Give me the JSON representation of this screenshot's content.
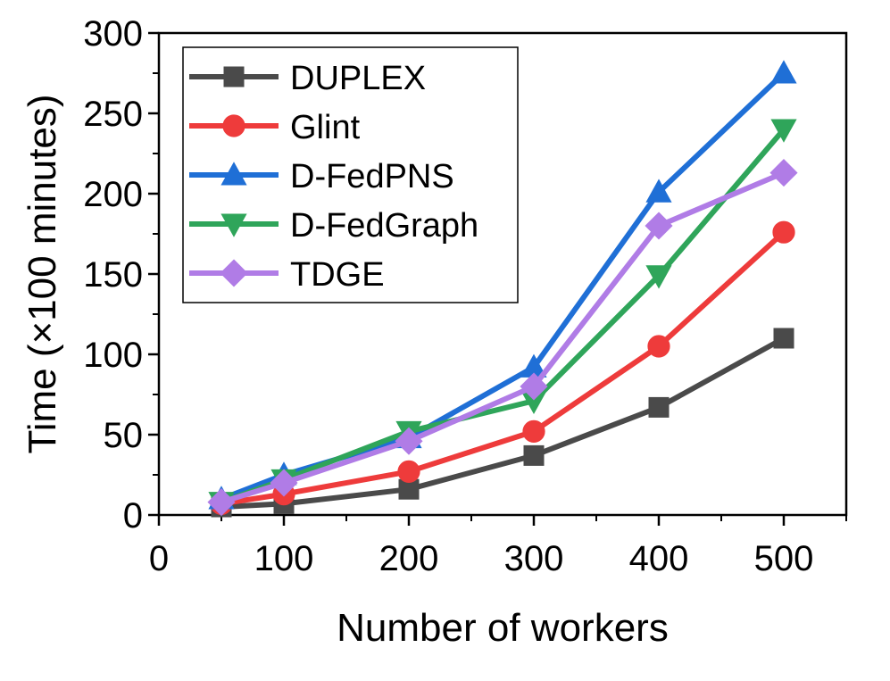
{
  "chart_data": {
    "type": "line",
    "title": "",
    "xlabel": "Number of workers",
    "ylabel": "Time (×100 minutes)",
    "xlim": [
      0,
      550
    ],
    "ylim": [
      0,
      300
    ],
    "x_ticks": [
      0,
      100,
      200,
      300,
      400,
      500
    ],
    "y_ticks": [
      0,
      50,
      100,
      150,
      200,
      250,
      300
    ],
    "grid": false,
    "legend_position": "top-left",
    "x": [
      50,
      100,
      200,
      300,
      400,
      500
    ],
    "series": [
      {
        "name": "DUPLEX",
        "color": "#4a4a4a",
        "marker": "square",
        "values": [
          5,
          7,
          16,
          37,
          67,
          110
        ]
      },
      {
        "name": "Glint",
        "color": "#ee3b3b",
        "marker": "circle",
        "values": [
          7,
          13,
          27,
          52,
          105,
          176
        ]
      },
      {
        "name": "D-FedPNS",
        "color": "#1f6fd6",
        "marker": "triangle-up",
        "values": [
          10,
          25,
          48,
          92,
          201,
          275
        ]
      },
      {
        "name": "D-FedGraph",
        "color": "#2fa55a",
        "marker": "triangle-down",
        "values": [
          8,
          22,
          52,
          71,
          149,
          240
        ]
      },
      {
        "name": "TDGE",
        "color": "#b07ce6",
        "marker": "diamond",
        "values": [
          8,
          20,
          46,
          80,
          180,
          213
        ]
      }
    ]
  }
}
